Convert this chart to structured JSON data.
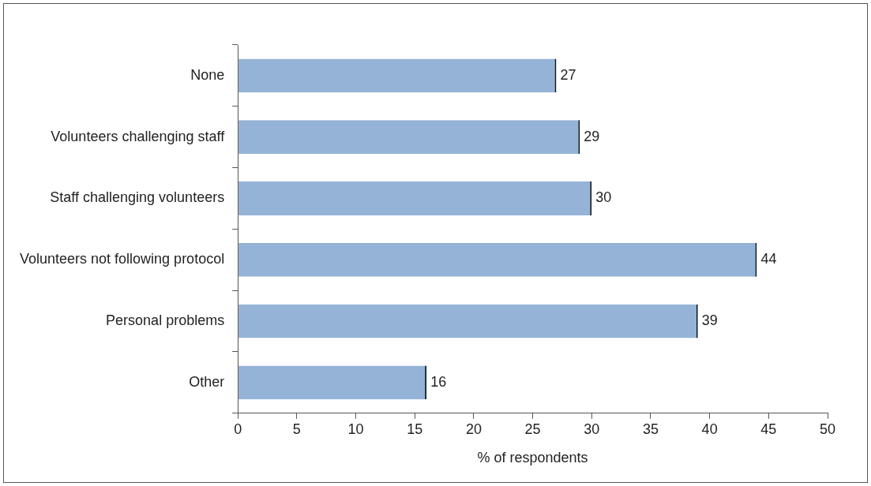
{
  "chart_data": {
    "type": "bar",
    "orientation": "horizontal",
    "categories": [
      "None",
      "Volunteers challenging staff",
      "Staff challenging volunteers",
      "Volunteers not following protocol",
      "Personal problems",
      "Other"
    ],
    "values": [
      27,
      29,
      30,
      44,
      39,
      16
    ],
    "color": "#95b3d7",
    "data_labels": true,
    "xlabel": "% of respondents",
    "xlim": [
      0,
      50
    ],
    "xticks": [
      0,
      5,
      10,
      15,
      20,
      25,
      30,
      35,
      40,
      45,
      50
    ],
    "legend": false
  }
}
